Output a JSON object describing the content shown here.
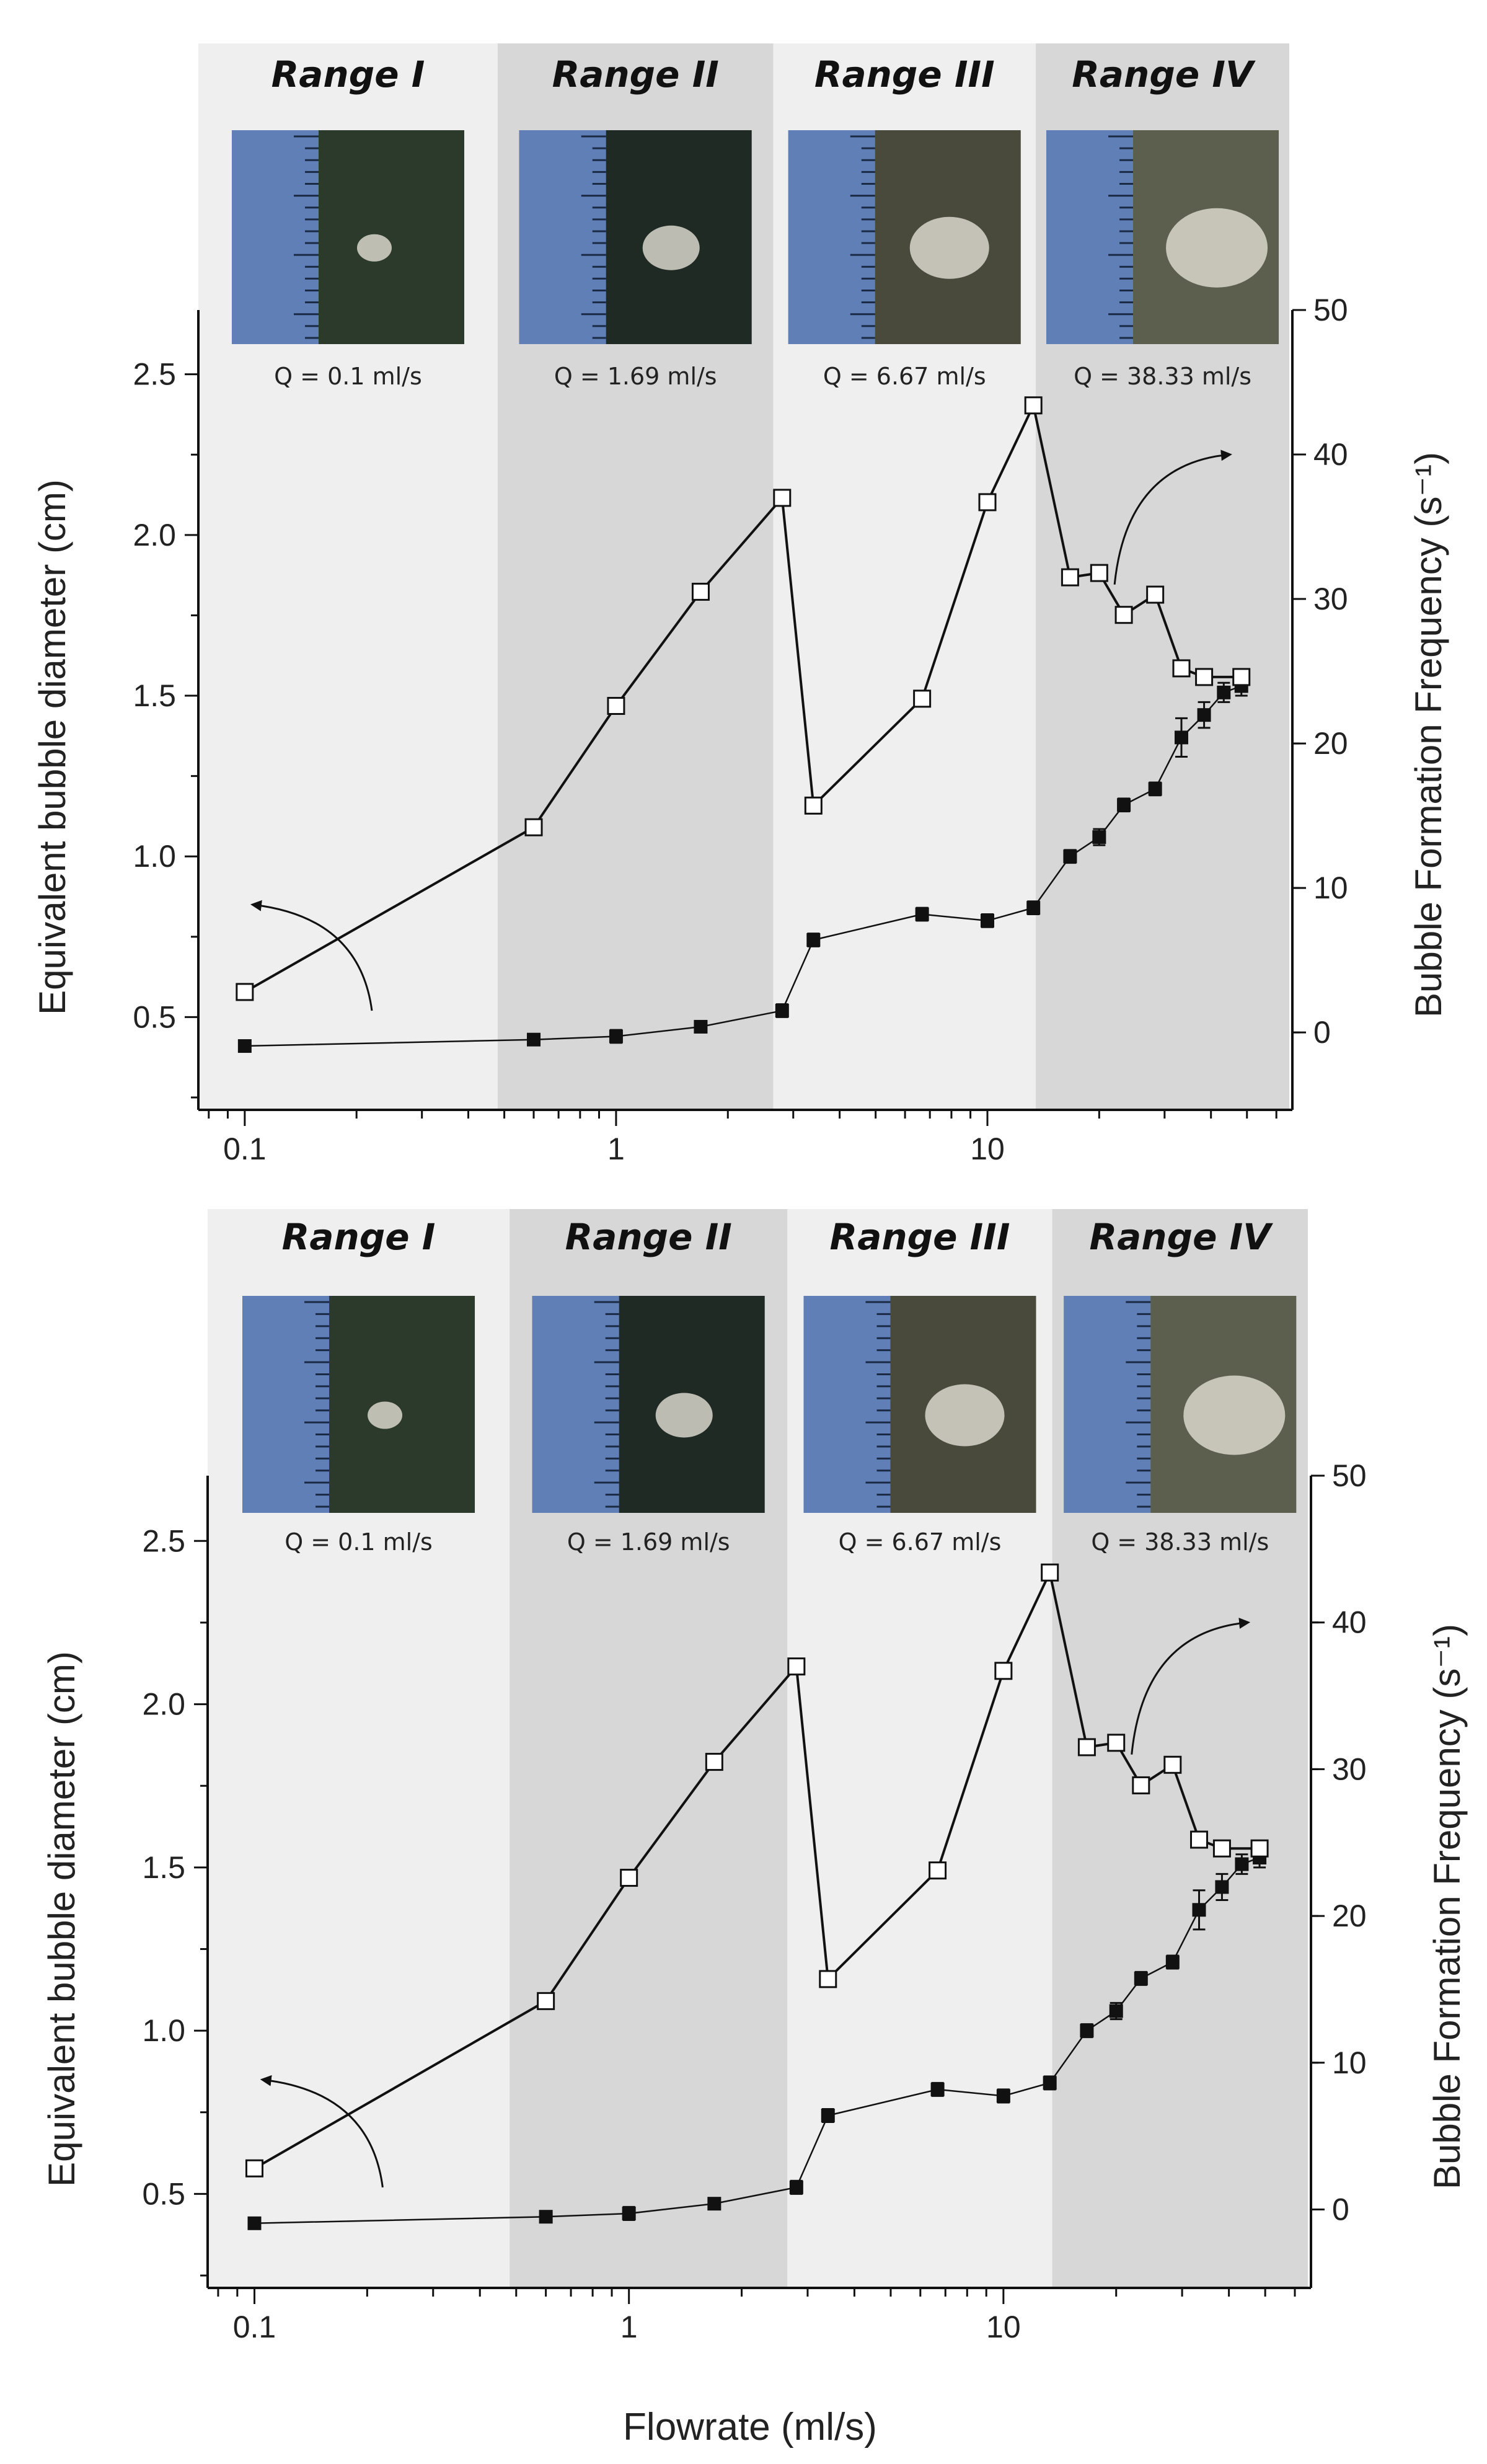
{
  "figure": {
    "xlabel": "Flowrate (ml/s)",
    "colors": {
      "range_light": "#efefef",
      "range_dark": "#d7d7d7",
      "line": "#111111",
      "open_marker_fill": "#ffffff",
      "filled_marker": "#111111"
    }
  },
  "chart_data": [
    {
      "type": "line",
      "panel": "top",
      "xscale": "log",
      "xlim": [
        0.075,
        65
      ],
      "x_ticks": [
        0.1,
        1,
        10
      ],
      "x_tick_labels": [
        "0.1",
        "1",
        "10"
      ],
      "ylabel": "Equivalent bubble diameter (cm)",
      "ylim": [
        0.25,
        2.7
      ],
      "y_ticks": [
        0.5,
        1.0,
        1.5,
        2.0,
        2.5
      ],
      "y_tick_labels": [
        "0.5",
        "1.0",
        "1.5",
        "2.0",
        "2.5"
      ],
      "y2label": "Bubble Formation Frequency (s⁻¹)",
      "y2lim": [
        -4.5,
        50
      ],
      "y2_ticks": [
        0,
        10,
        20,
        30,
        40,
        50
      ],
      "y2_tick_labels": [
        "0",
        "10",
        "20",
        "30",
        "40",
        "50"
      ],
      "ranges": [
        {
          "label": "Range I",
          "x0": 0.075,
          "x1": 0.48,
          "shade": "light",
          "q_label": "Q = 0.1 ml/s",
          "photo_color": "#2b3a2a"
        },
        {
          "label": "Range II",
          "x0": 0.48,
          "x1": 2.65,
          "shade": "dark",
          "q_label": "Q = 1.69 ml/s",
          "photo_color": "#1f2a24"
        },
        {
          "label": "Range III",
          "x0": 2.65,
          "x1": 13.5,
          "shade": "light",
          "q_label": "Q = 6.67 ml/s",
          "photo_color": "#4a4a3c"
        },
        {
          "label": "Range IV",
          "x0": 13.5,
          "x1": 65,
          "shade": "dark",
          "q_label": "Q = 38.33 ml/s",
          "photo_color": "#5c5f4e"
        }
      ],
      "series": [
        {
          "name": "Equivalent bubble diameter",
          "axis": "left",
          "marker": "filled",
          "x": [
            0.1,
            0.6,
            1.0,
            1.69,
            2.8,
            3.4,
            6.67,
            10,
            13.3,
            16.7,
            20,
            23.3,
            28.3,
            33.3,
            38.33,
            43.3,
            48.3
          ],
          "y": [
            0.41,
            0.43,
            0.44,
            0.47,
            0.52,
            0.74,
            0.82,
            0.8,
            0.84,
            1.0,
            1.06,
            1.16,
            1.21,
            1.37,
            1.44,
            1.51,
            1.53
          ],
          "err": [
            0.015,
            0.015,
            0.02,
            0.015,
            0.02,
            0.02,
            0.02,
            0.02,
            0.02,
            0.02,
            0.025,
            0.02,
            0.02,
            0.06,
            0.04,
            0.03,
            0.03
          ]
        },
        {
          "name": "Bubble formation frequency",
          "axis": "right",
          "marker": "open",
          "x": [
            0.1,
            0.6,
            1.0,
            1.69,
            2.8,
            3.4,
            6.67,
            10,
            13.3,
            16.7,
            20,
            23.3,
            28.3,
            33.3,
            38.33,
            48.3
          ],
          "y": [
            2.8,
            14.2,
            22.6,
            30.5,
            37.0,
            15.7,
            23.1,
            36.7,
            43.4,
            31.5,
            31.8,
            28.9,
            30.3,
            25.2,
            24.6,
            24.6
          ]
        }
      ],
      "annotations": [
        {
          "type": "arrow",
          "target": "left-axis"
        },
        {
          "type": "arrow",
          "target": "right-axis"
        }
      ]
    },
    {
      "type": "line",
      "panel": "bottom",
      "xscale": "log",
      "xlim": [
        0.075,
        65
      ],
      "x_ticks": [
        0.1,
        1,
        10
      ],
      "x_tick_labels": [
        "0.1",
        "1",
        "10"
      ],
      "ylabel": "Equivalent bubble diameter (cm)",
      "ylim": [
        0.25,
        2.7
      ],
      "y_ticks": [
        0.5,
        1.0,
        1.5,
        2.0,
        2.5
      ],
      "y_tick_labels": [
        "0.5",
        "1.0",
        "1.5",
        "2.0",
        "2.5"
      ],
      "y2label": "Bubble Formation Frequency (s⁻¹)",
      "y2lim": [
        -4.5,
        50
      ],
      "y2_ticks": [
        0,
        10,
        20,
        30,
        40,
        50
      ],
      "y2_tick_labels": [
        "0",
        "10",
        "20",
        "30",
        "40",
        "50"
      ],
      "ranges": [
        {
          "label": "Range I",
          "x0": 0.075,
          "x1": 0.48,
          "shade": "light",
          "q_label": "Q = 0.1 ml/s",
          "photo_color": "#2b3a2a"
        },
        {
          "label": "Range II",
          "x0": 0.48,
          "x1": 2.65,
          "shade": "dark",
          "q_label": "Q = 1.69 ml/s",
          "photo_color": "#1f2a24"
        },
        {
          "label": "Range III",
          "x0": 2.65,
          "x1": 13.5,
          "shade": "light",
          "q_label": "Q = 6.67 ml/s",
          "photo_color": "#4a4a3c"
        },
        {
          "label": "Range IV",
          "x0": 13.5,
          "x1": 65,
          "shade": "dark",
          "q_label": "Q = 38.33 ml/s",
          "photo_color": "#5c5f4e"
        }
      ],
      "series": [
        {
          "name": "Equivalent bubble diameter",
          "axis": "left",
          "marker": "filled",
          "x": [
            0.1,
            0.6,
            1.0,
            1.69,
            2.8,
            3.4,
            6.67,
            10,
            13.3,
            16.7,
            20,
            23.3,
            28.3,
            33.3,
            38.33,
            43.3,
            48.3
          ],
          "y": [
            0.41,
            0.43,
            0.44,
            0.47,
            0.52,
            0.74,
            0.82,
            0.8,
            0.84,
            1.0,
            1.06,
            1.16,
            1.21,
            1.37,
            1.44,
            1.51,
            1.53
          ],
          "err": [
            0.015,
            0.015,
            0.02,
            0.015,
            0.02,
            0.02,
            0.02,
            0.02,
            0.02,
            0.02,
            0.025,
            0.02,
            0.02,
            0.06,
            0.04,
            0.03,
            0.03
          ]
        },
        {
          "name": "Bubble formation frequency",
          "axis": "right",
          "marker": "open",
          "x": [
            0.1,
            0.6,
            1.0,
            1.69,
            2.8,
            3.4,
            6.67,
            10,
            13.3,
            16.7,
            20,
            23.3,
            28.3,
            33.3,
            38.33,
            48.3
          ],
          "y": [
            2.8,
            14.2,
            22.6,
            30.5,
            37.0,
            15.7,
            23.1,
            36.7,
            43.4,
            31.5,
            31.8,
            28.9,
            30.3,
            25.2,
            24.6,
            24.6
          ]
        }
      ],
      "annotations": [
        {
          "type": "arrow",
          "target": "left-axis"
        },
        {
          "type": "arrow",
          "target": "right-axis"
        }
      ]
    }
  ]
}
